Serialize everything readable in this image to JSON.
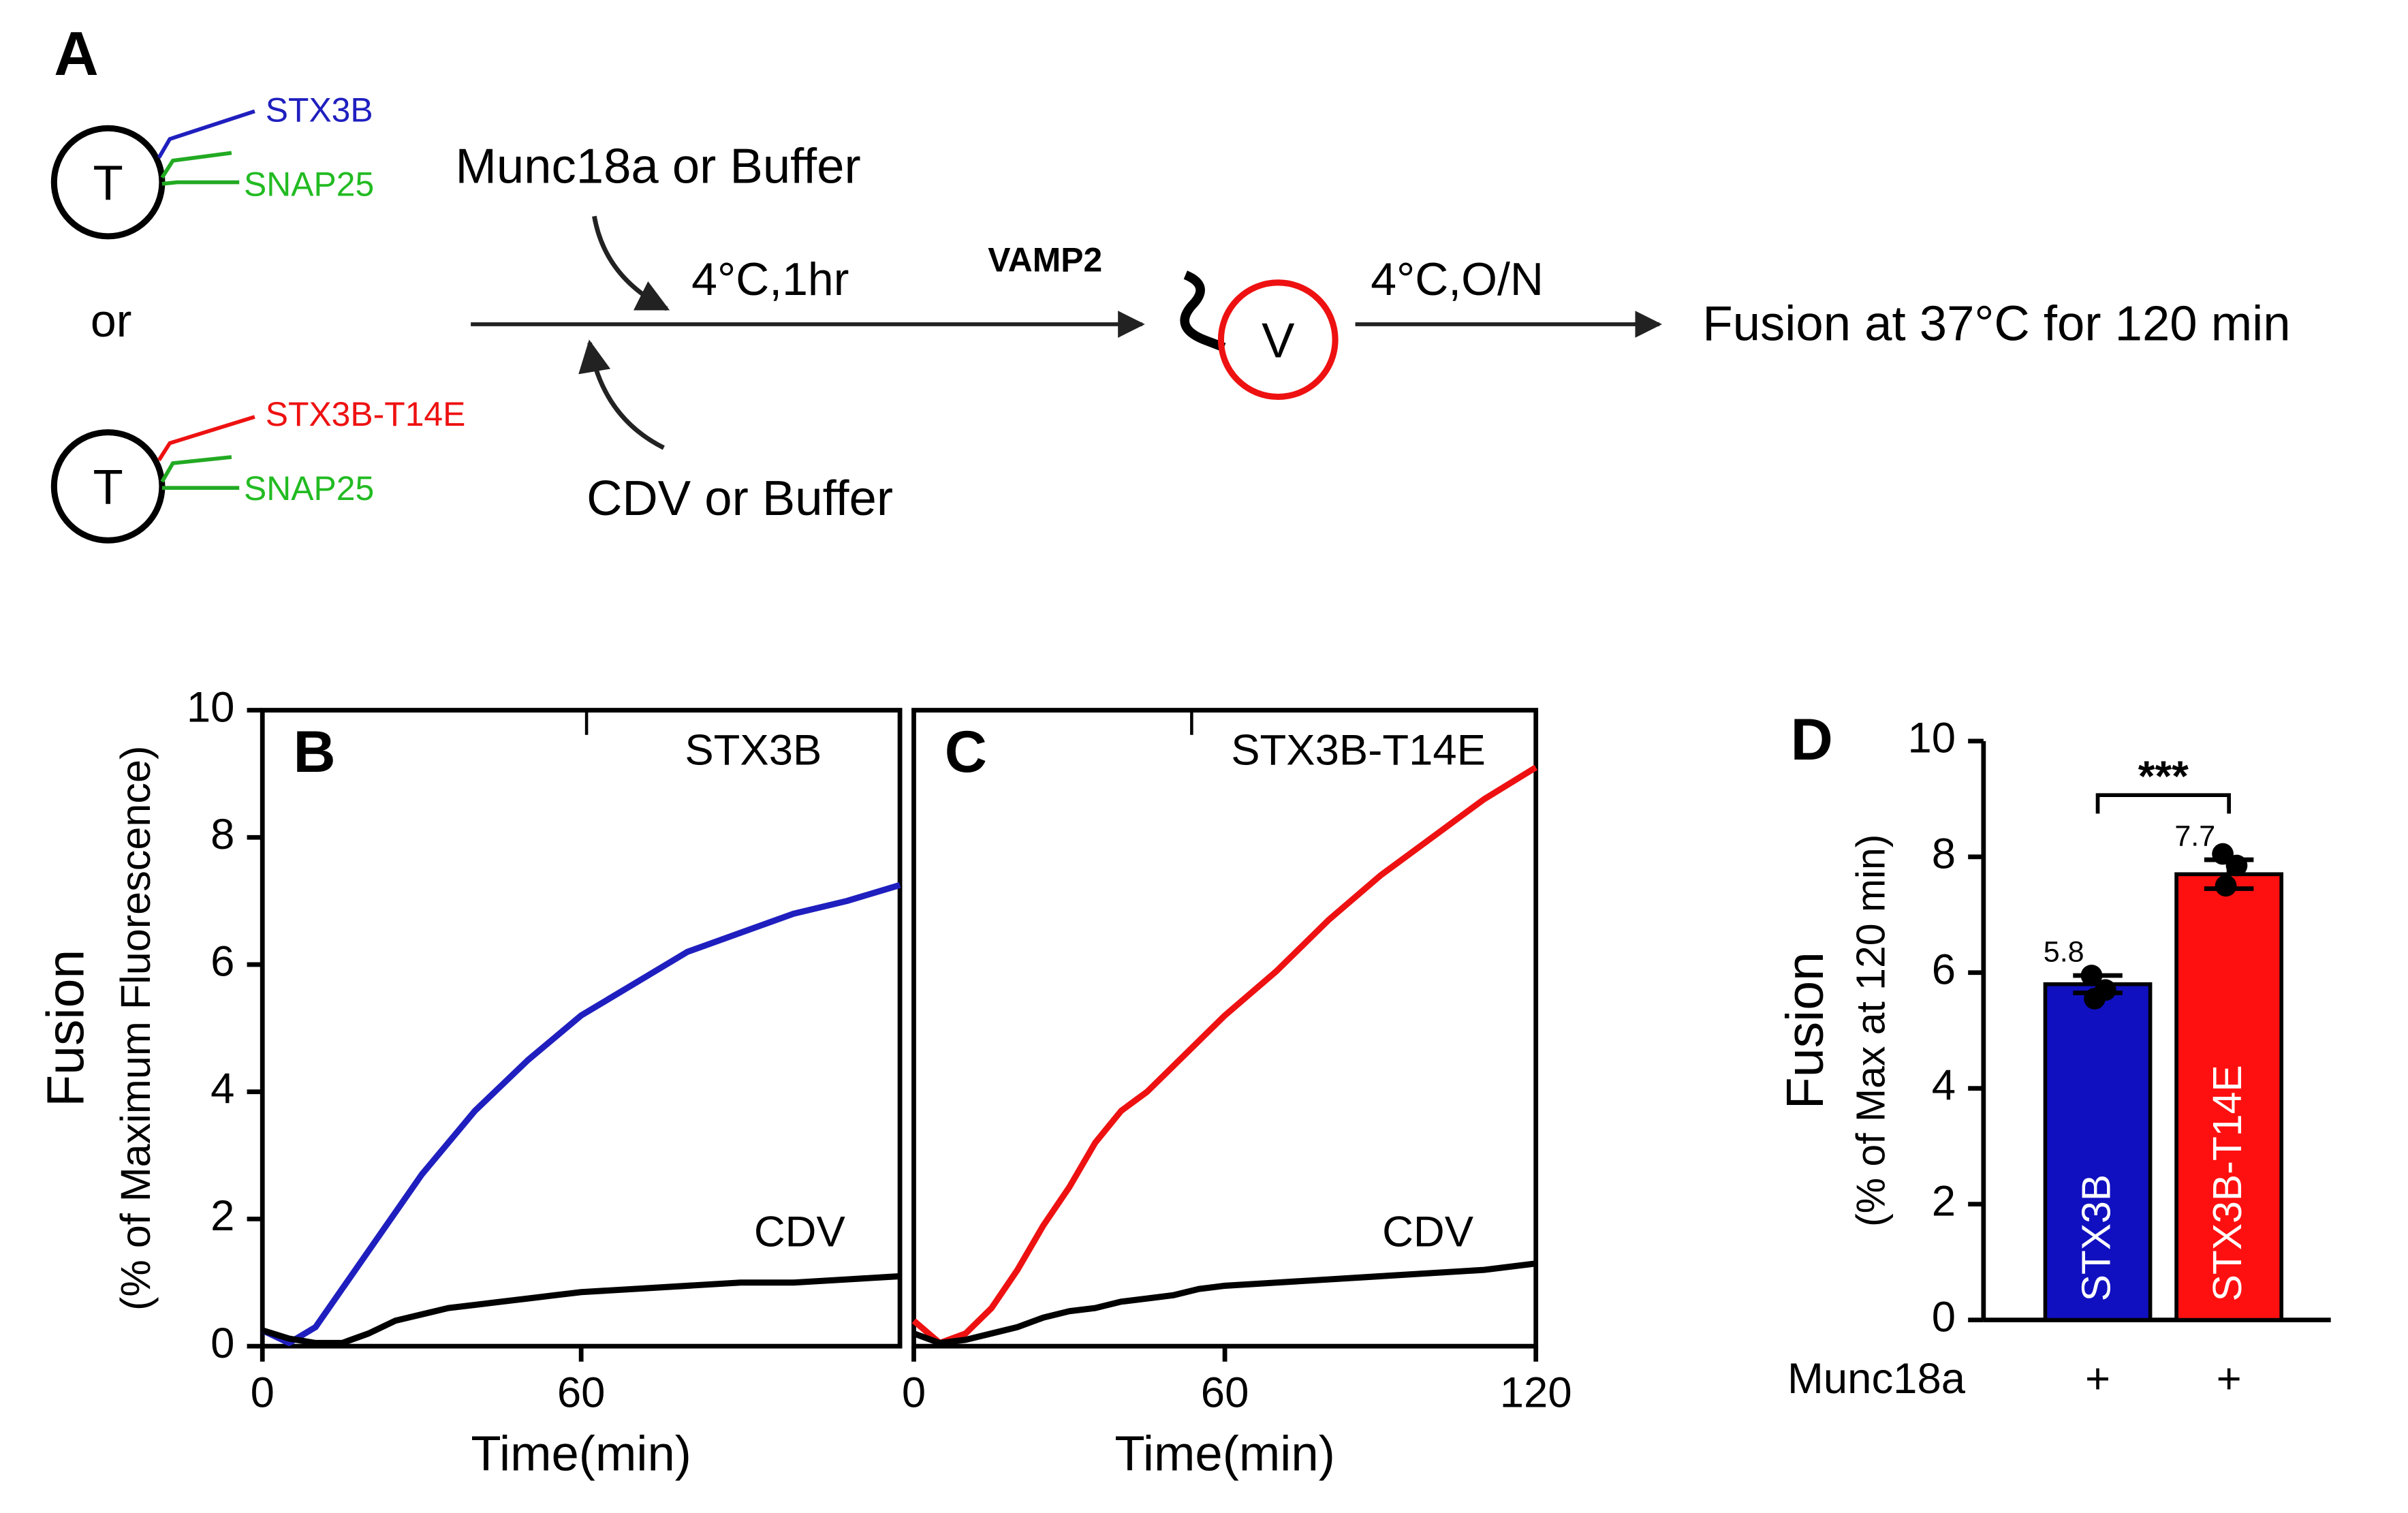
{
  "diagram": {
    "panel": "A",
    "t_vesicle_1": {
      "label": "T",
      "syntaxin": "STX3B",
      "snap": "SNAP25"
    },
    "or": "or",
    "t_vesicle_2": {
      "label": "T",
      "syntaxin": "STX3B-T14E",
      "snap": "SNAP25"
    },
    "step1_top": "Munc18a or Buffer",
    "step1_bottom": "CDV or Buffer",
    "step1_condition": "4°C,1hr",
    "v_protein": "VAMP2",
    "v_vesicle": "V",
    "step2_condition": "4°C,O/N",
    "final": "Fusion at 37°C for 120 min"
  },
  "chart_data": [
    {
      "type": "line",
      "panel": "B",
      "ylabel": "Fusion",
      "ylabel_sub": "(% of Maximum Fluorescence)",
      "xlabel": "Time(min)",
      "xlim": [
        0,
        120
      ],
      "xticks": [
        0,
        60
      ],
      "ylim": [
        0,
        10
      ],
      "yticks": [
        0,
        2,
        4,
        6,
        8,
        10
      ],
      "x": [
        0,
        5,
        10,
        15,
        20,
        25,
        30,
        35,
        40,
        45,
        50,
        55,
        60,
        70,
        80,
        90,
        100,
        110,
        120
      ],
      "series": [
        {
          "name": "STX3B",
          "color": "#1f1fbf",
          "values": [
            0.25,
            0.05,
            0.3,
            0.9,
            1.5,
            2.1,
            2.7,
            3.2,
            3.7,
            4.1,
            4.5,
            4.85,
            5.2,
            5.7,
            6.2,
            6.5,
            6.8,
            7.0,
            7.25
          ]
        },
        {
          "name": "CDV",
          "color": "#000000",
          "values": [
            0.25,
            0.12,
            0.05,
            0.05,
            0.2,
            0.4,
            0.5,
            0.6,
            0.65,
            0.7,
            0.75,
            0.8,
            0.85,
            0.9,
            0.95,
            1.0,
            1.0,
            1.05,
            1.1
          ]
        }
      ]
    },
    {
      "type": "line",
      "panel": "C",
      "xlabel": "Time(min)",
      "xlim": [
        0,
        120
      ],
      "xticks": [
        0,
        60,
        120
      ],
      "ylim": [
        0,
        10
      ],
      "x": [
        0,
        5,
        10,
        15,
        20,
        25,
        30,
        35,
        40,
        45,
        50,
        55,
        60,
        70,
        80,
        90,
        100,
        110,
        120
      ],
      "series": [
        {
          "name": "STX3B-T14E",
          "color": "#ee1111",
          "values": [
            0.4,
            0.05,
            0.2,
            0.6,
            1.2,
            1.9,
            2.5,
            3.2,
            3.7,
            4.0,
            4.4,
            4.8,
            5.2,
            5.9,
            6.7,
            7.4,
            8.0,
            8.6,
            9.1
          ]
        },
        {
          "name": "CDV",
          "color": "#000000",
          "values": [
            0.2,
            0.05,
            0.1,
            0.2,
            0.3,
            0.45,
            0.55,
            0.6,
            0.7,
            0.75,
            0.8,
            0.9,
            0.95,
            1.0,
            1.05,
            1.1,
            1.15,
            1.2,
            1.3
          ]
        }
      ]
    },
    {
      "type": "bar",
      "panel": "D",
      "ylabel": "Fusion",
      "ylabel_sub": "(% of Max at 120 min)",
      "ylim": [
        0,
        10
      ],
      "yticks": [
        0,
        2,
        4,
        6,
        8,
        10
      ],
      "categories": [
        "STX3B",
        "STX3B-T14E"
      ],
      "colors": [
        "#1010c0",
        "#ff1010"
      ],
      "values": [
        5.8,
        7.7
      ],
      "errors": [
        0.15,
        0.25
      ],
      "points": [
        [
          5.95,
          5.7,
          5.55
        ],
        [
          8.05,
          7.85,
          7.5
        ]
      ],
      "row_label": "Munc18a",
      "row_values": [
        "+",
        "+"
      ],
      "significance": "***"
    }
  ]
}
